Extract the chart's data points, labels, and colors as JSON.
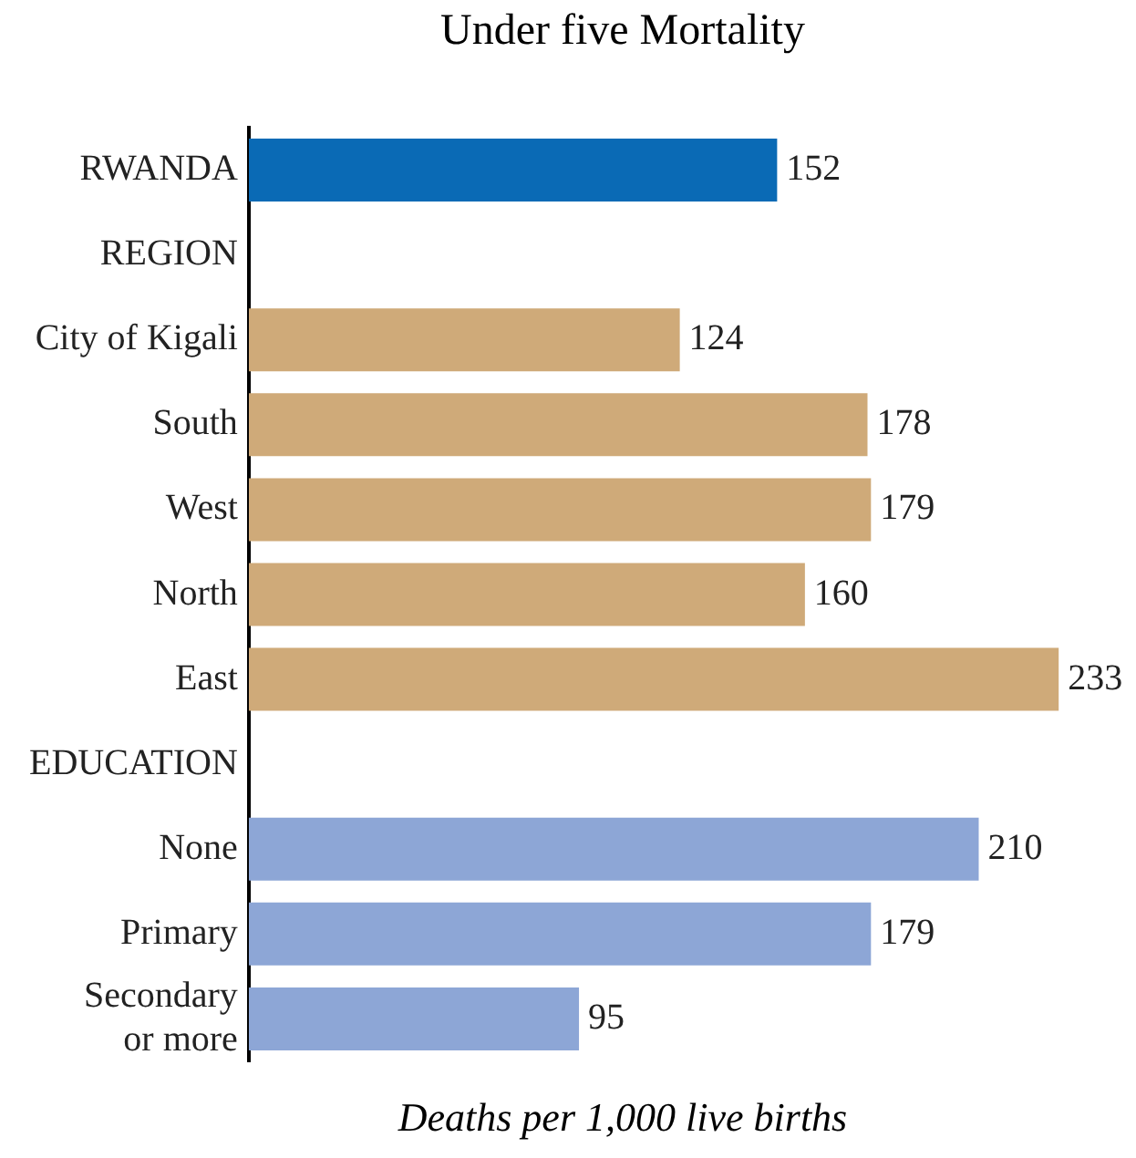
{
  "chart_data": {
    "type": "bar",
    "orientation": "horizontal",
    "title": "Under five Mortality",
    "xlabel": "Deaths per 1,000 live births",
    "categories": [
      "RWANDA",
      "REGION",
      "City of Kigali",
      "South",
      "West",
      "North",
      "East",
      "EDUCATION",
      "None",
      "Primary",
      "Secondary or more"
    ],
    "values": [
      152,
      null,
      124,
      178,
      179,
      160,
      233,
      null,
      210,
      179,
      95
    ],
    "colors": [
      "#0a6ab5",
      null,
      "#cfaa79",
      "#cfaa79",
      "#cfaa79",
      "#cfaa79",
      "#cfaa79",
      null,
      "#8da6d6",
      "#8da6d6",
      "#8da6d6"
    ],
    "tick_labels": "y",
    "data_labels": true,
    "legend": false
  }
}
